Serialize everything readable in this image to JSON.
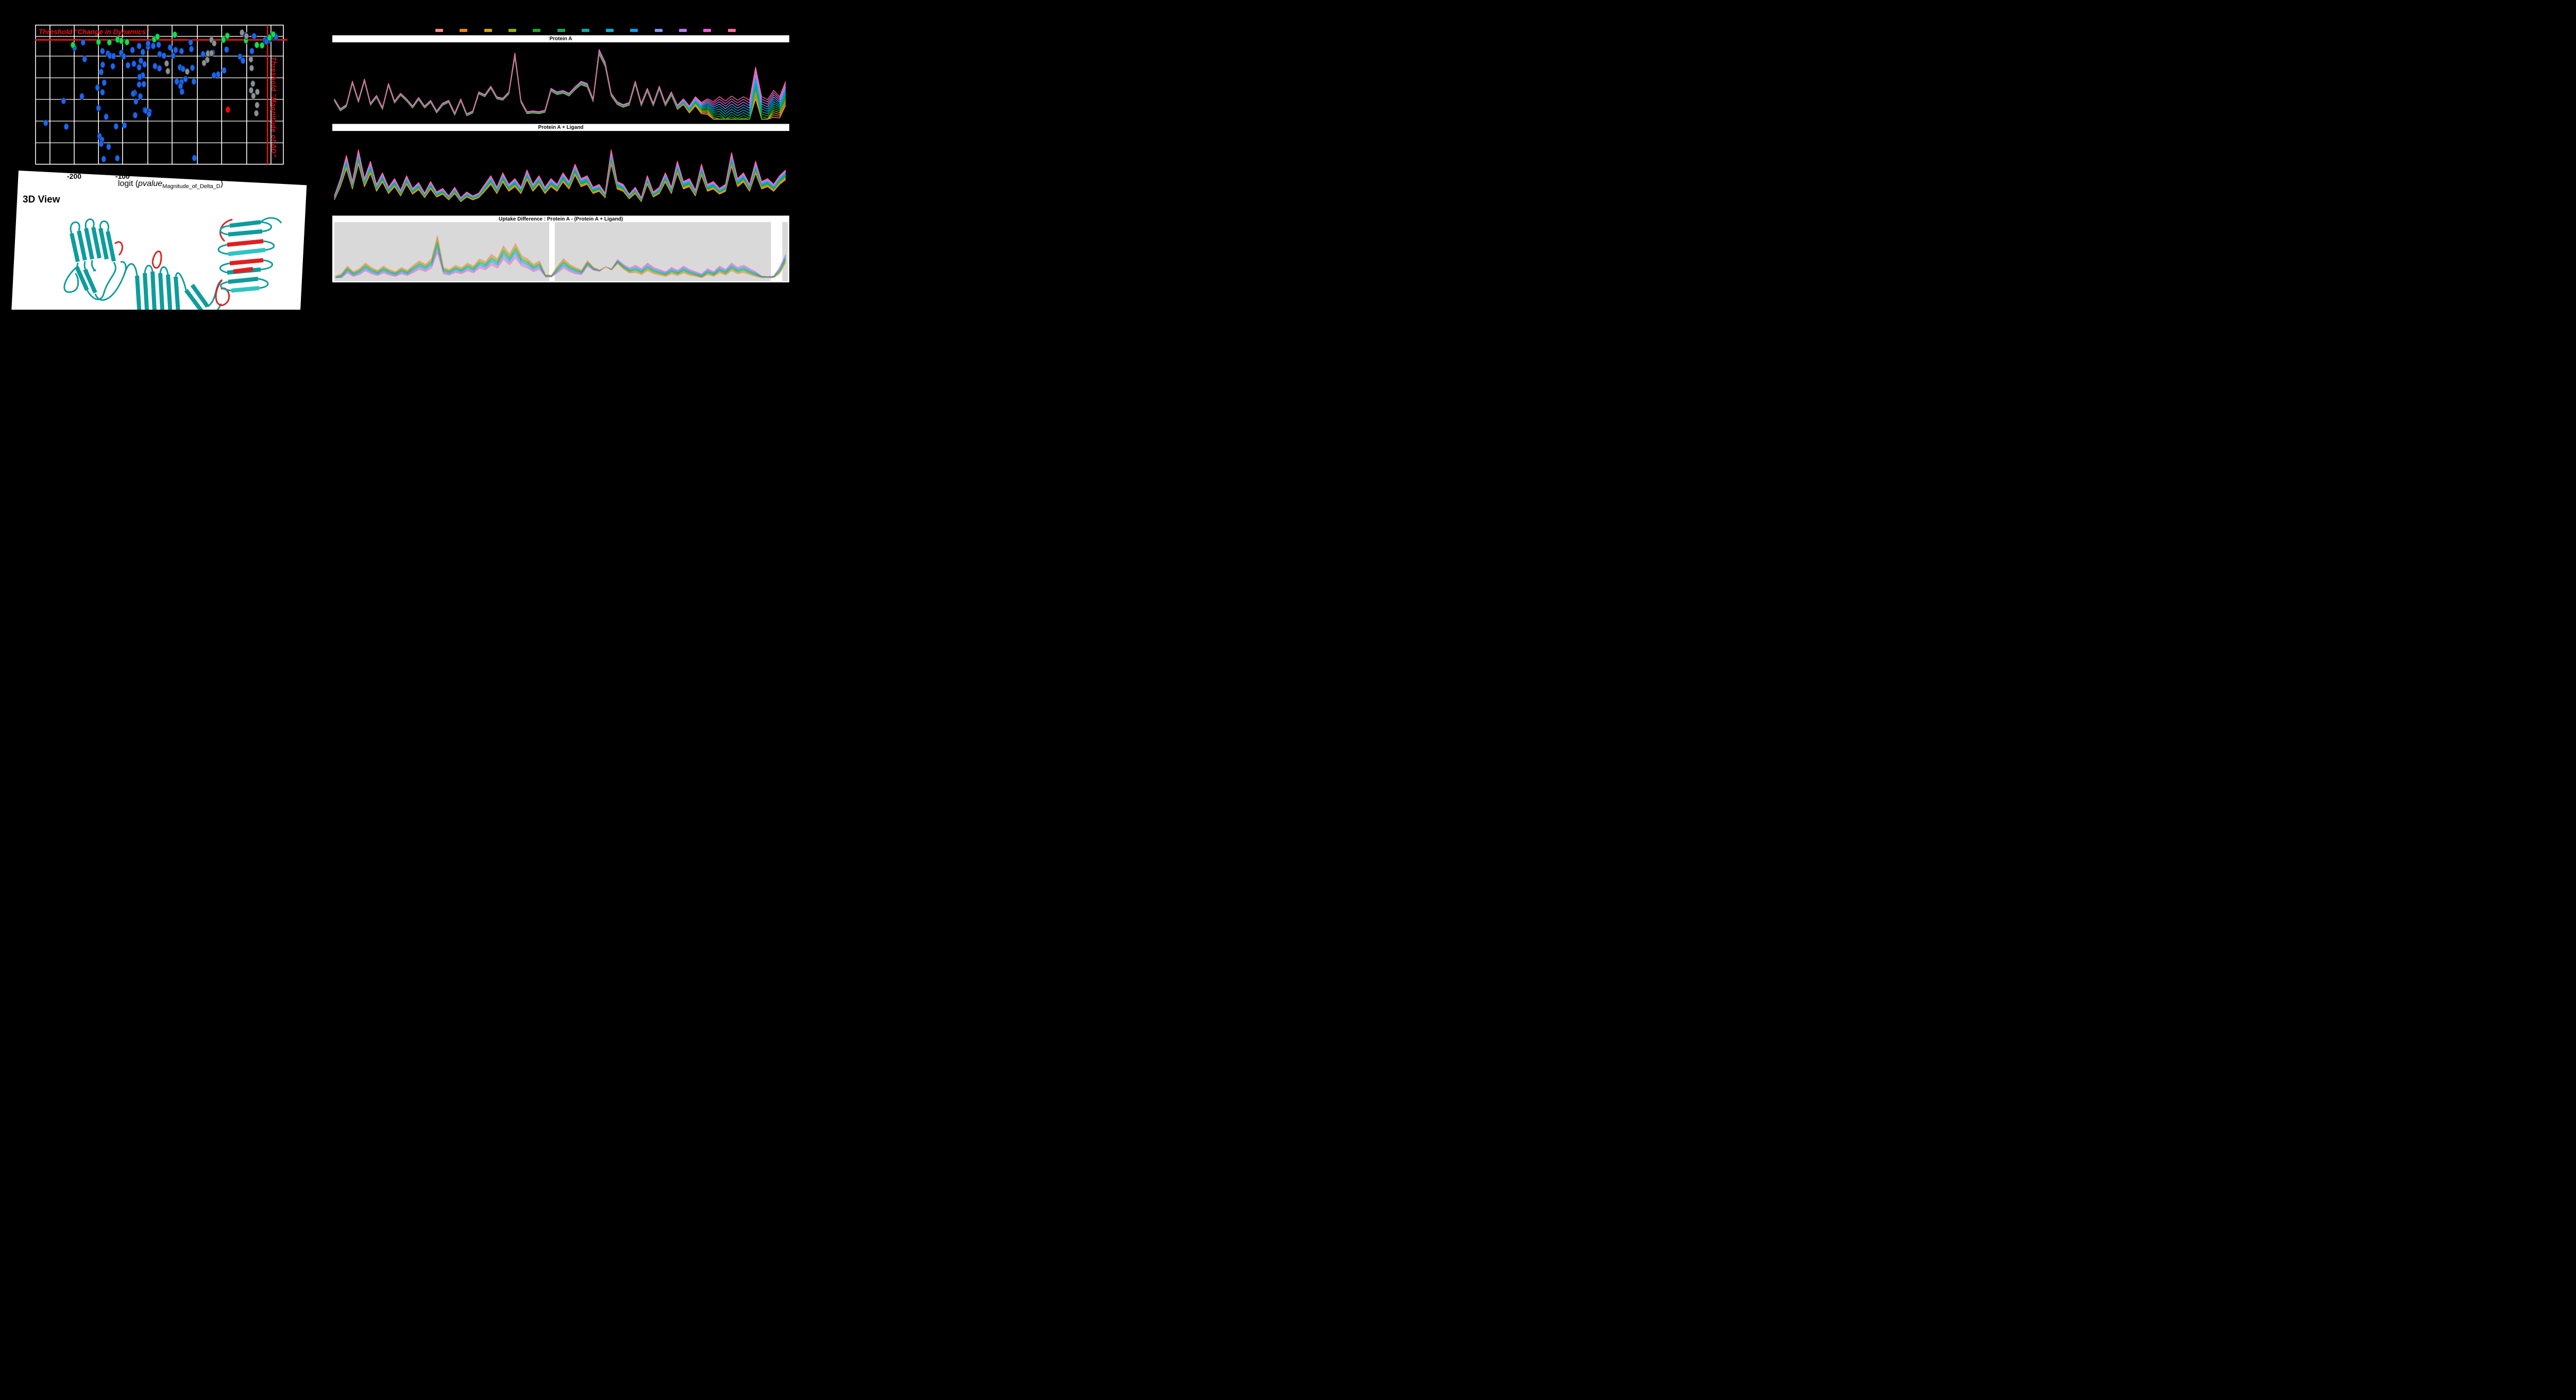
{
  "viewer3d": {
    "label": "3D View",
    "ribbon_color": "#0e9c9c",
    "highlight_color": "#e01f1f",
    "bg": "#ffffff"
  },
  "legend": {
    "colors": [
      "#f28b8b",
      "#e8860b",
      "#c7a410",
      "#8fb400",
      "#18a826",
      "#0cab62",
      "#00abab",
      "#00b4cc",
      "#00a0f0",
      "#8496ec",
      "#b878f0",
      "#ee5ad8",
      "#fb6c9c"
    ]
  },
  "volcano": {
    "threshold_label_horizontal": "Threshold \"Change in Dynamics\"",
    "threshold_label_vertical": "Threshold \"Magnitude of ΔD\"",
    "threshold_color": "#ee1111",
    "axis": {
      "title_pre": "logit (",
      "title_italic": "pvalue",
      "title_sub": "Magnitude_of_Delta_D",
      "title_post": ")",
      "ticks": [
        {
          "label": "-200",
          "pct": 15.6
        },
        {
          "label": "-100",
          "pct": 35.1
        }
      ]
    }
  },
  "chart_data": [
    {
      "id": "volcano",
      "type": "scatter",
      "title": "",
      "units": "percent_of_plot_area",
      "gridlines": {
        "v_pct": [
          5.8,
          15.6,
          25.4,
          35.1,
          45.3,
          55.1,
          65.3,
          75.1,
          85.2,
          95.0
        ],
        "h_pct": [
          8.1,
          22.3,
          37.9,
          53.4,
          69.0,
          84.6
        ]
      },
      "thresholds": {
        "h_pct": 10.6,
        "v_pct": 93.6,
        "color": "#ee1111"
      },
      "x_ticks": [
        {
          "label": "-200",
          "pct": 15.6
        },
        {
          "label": "-100",
          "pct": 35.1
        }
      ],
      "series": [
        {
          "name": "blue",
          "color": "#1b66f0",
          "stroke": "#0a1f4d",
          "points": [
            [
              15.7,
              16.3
            ],
            [
              19.2,
              12.4
            ],
            [
              19.8,
              24.5
            ],
            [
              27.0,
              18.7
            ],
            [
              29.2,
              20.5
            ],
            [
              30.0,
              22.0
            ],
            [
              31.5,
              22.3
            ],
            [
              34.6,
              20.0
            ],
            [
              35.6,
              22.5
            ],
            [
              27.1,
              28.5
            ],
            [
              31.2,
              29.6
            ],
            [
              26.5,
              33.7
            ],
            [
              27.7,
              41.4
            ],
            [
              25.0,
              45.0
            ],
            [
              27.0,
              48.3
            ],
            [
              18.7,
              51.2
            ],
            [
              11.3,
              54.5
            ],
            [
              25.4,
              59.7
            ],
            [
              28.5,
              65.9
            ],
            [
              32.5,
              72.8
            ],
            [
              35.9,
              72.1
            ],
            [
              25.8,
              79.8
            ],
            [
              26.8,
              82.4
            ],
            [
              26.5,
              85.3
            ],
            [
              29.5,
              87.5
            ],
            [
              27.5,
              96.3
            ],
            [
              37.3,
              28.9
            ],
            [
              39.1,
              17.9
            ],
            [
              39.7,
              27.8
            ],
            [
              41.8,
              30.4
            ],
            [
              43.3,
              19.4
            ],
            [
              45.4,
              15.7
            ],
            [
              43.3,
              36.2
            ],
            [
              42.0,
              37.3
            ],
            [
              43.7,
              42.5
            ],
            [
              41.8,
              42.7
            ],
            [
              40.0,
              48.7
            ],
            [
              39.4,
              49.3
            ],
            [
              42.3,
              51.2
            ],
            [
              40.5,
              54.9
            ],
            [
              44.1,
              61.1
            ],
            [
              44.5,
              61.5
            ],
            [
              46.0,
              62.2
            ],
            [
              45.8,
              64.0
            ],
            [
              40.2,
              64.8
            ],
            [
              49.7,
              14.1
            ],
            [
              47.5,
              15.0
            ],
            [
              50.1,
              20.9
            ],
            [
              51.8,
              22.0
            ],
            [
              55.5,
              22.0
            ],
            [
              54.3,
              16.1
            ],
            [
              56.5,
              17.9
            ],
            [
              58.9,
              18.7
            ],
            [
              58.3,
              30.4
            ],
            [
              59.5,
              31.5
            ],
            [
              63.3,
              30.7
            ],
            [
              57.0,
              40.6
            ],
            [
              58.9,
              41.0
            ],
            [
              60.5,
              38.8
            ],
            [
              63.9,
              40.6
            ],
            [
              58.5,
              43.9
            ],
            [
              59.1,
              47.9
            ],
            [
              62.6,
              12.4
            ],
            [
              62.9,
              17.2
            ],
            [
              67.6,
              20.9
            ],
            [
              69.5,
              20.0
            ],
            [
              71.5,
              19.8
            ],
            [
              72.0,
              36.2
            ],
            [
              73.7,
              35.5
            ],
            [
              77.1,
              17.6
            ],
            [
              76.1,
              32.6
            ],
            [
              82.5,
              22.7
            ],
            [
              83.7,
              25.6
            ],
            [
              87.3,
              18.7
            ],
            [
              88.2,
              8.0
            ],
            [
              84.7,
              7.2
            ],
            [
              92.6,
              10.8
            ],
            [
              93.7,
              10.2
            ],
            [
              94.1,
              11.2
            ],
            [
              93.2,
              11.9
            ],
            [
              95.0,
              9.0
            ],
            [
              94.5,
              8.4
            ],
            [
              96.7,
              7.7
            ],
            [
              97.0,
              8.6
            ],
            [
              4.1,
              70.3
            ],
            [
              12.4,
              73.0
            ],
            [
              33.0,
              95.7
            ],
            [
              64.1,
              95.6
            ],
            [
              42.5,
              25.6
            ],
            [
              44.0,
              28.2
            ],
            [
              48.2,
              29.5
            ],
            [
              50.0,
              31.1
            ],
            [
              41.8,
              15.0
            ],
            [
              45.4,
              13.2
            ]
          ]
        },
        {
          "name": "green",
          "color": "#0ee04e",
          "stroke": "#064d1e",
          "points": [
            [
              15.1,
              14.3
            ],
            [
              25.4,
              12.1
            ],
            [
              29.8,
              12.4
            ],
            [
              33.1,
              10.4
            ],
            [
              34.6,
              11.3
            ],
            [
              36.9,
              12.2
            ],
            [
              47.9,
              10.2
            ],
            [
              49.2,
              8.4
            ],
            [
              56.2,
              6.9
            ],
            [
              75.8,
              10.6
            ],
            [
              77.4,
              7.7
            ],
            [
              84.9,
              11.0
            ],
            [
              89.3,
              14.3
            ],
            [
              91.4,
              14.6
            ],
            [
              95.9,
              6.7
            ],
            [
              94.4,
              9.1
            ]
          ]
        },
        {
          "name": "gray",
          "color": "#8f8f8f",
          "stroke": "#1a2430",
          "points": [
            [
              83.3,
              5.4
            ],
            [
              85.1,
              8.0
            ],
            [
              71.0,
              10.6
            ],
            [
              72.1,
              13.1
            ],
            [
              69.6,
              20.5
            ],
            [
              71.0,
              20.2
            ],
            [
              69.3,
              25.0
            ],
            [
              68.0,
              27.2
            ],
            [
              52.9,
              27.6
            ],
            [
              53.4,
              33.1
            ],
            [
              61.2,
              33.4
            ],
            [
              86.9,
              24.6
            ],
            [
              87.2,
              30.9
            ],
            [
              87.7,
              42.1
            ],
            [
              87.0,
              46.9
            ],
            [
              89.5,
              48.0
            ],
            [
              87.9,
              50.9
            ],
            [
              89.4,
              57.5
            ],
            [
              89.1,
              63.4
            ]
          ]
        },
        {
          "name": "red",
          "color": "#f00808",
          "stroke": "#5a0404",
          "points": [
            [
              77.6,
              60.8
            ]
          ]
        }
      ]
    },
    {
      "id": "protein-a",
      "type": "line",
      "title": "Protein A",
      "n_series": 13,
      "order_top": "pink",
      "profile": [
        0.3,
        0.16,
        0.22,
        0.55,
        0.28,
        0.58,
        0.24,
        0.35,
        0.18,
        0.52,
        0.27,
        0.38,
        0.3,
        0.2,
        0.32,
        0.2,
        0.28,
        0.13,
        0.24,
        0.28,
        0.1,
        0.3,
        0.09,
        0.13,
        0.4,
        0.36,
        0.48,
        0.33,
        0.31,
        0.4,
        0.95,
        0.28,
        0.12,
        0.13,
        0.12,
        0.14,
        0.45,
        0.4,
        0.42,
        0.38,
        0.47,
        0.55,
        0.52,
        0.3,
        1.0,
        0.82,
        0.38,
        0.26,
        0.22,
        0.25,
        0.55,
        0.24,
        0.45,
        0.24,
        0.48,
        0.24,
        0.4,
        0.21,
        0.3,
        0.2,
        0.33,
        0.25,
        0.3,
        0.26,
        0.33,
        0.27,
        0.34,
        0.28,
        0.33,
        0.28,
        0.75,
        0.33,
        0.29,
        0.42,
        0.33,
        0.55
      ],
      "spread": [
        0.03,
        0.03,
        0.03,
        0.03,
        0.03,
        0.03,
        0.03,
        0.03,
        0.03,
        0.03,
        0.03,
        0.03,
        0.03,
        0.03,
        0.03,
        0.03,
        0.03,
        0.03,
        0.03,
        0.03,
        0.03,
        0.03,
        0.03,
        0.03,
        0.03,
        0.03,
        0.03,
        0.03,
        0.03,
        0.03,
        0.06,
        0.03,
        0.03,
        0.03,
        0.03,
        0.03,
        0.04,
        0.04,
        0.04,
        0.04,
        0.04,
        0.05,
        0.05,
        0.04,
        0.07,
        0.06,
        0.04,
        0.04,
        0.04,
        0.04,
        0.04,
        0.04,
        0.04,
        0.04,
        0.04,
        0.04,
        0.05,
        0.06,
        0.08,
        0.1,
        0.13,
        0.16,
        0.22,
        0.3,
        0.42,
        0.44,
        0.45,
        0.44,
        0.45,
        0.44,
        0.45,
        0.42,
        0.4,
        0.38,
        0.3,
        0.34
      ]
    },
    {
      "id": "protein-a-ligand",
      "type": "line",
      "title": "Protein A + Ligand",
      "n_series": 13,
      "order_top": "pink",
      "profile": [
        0.15,
        0.45,
        0.85,
        0.4,
        0.95,
        0.45,
        0.75,
        0.35,
        0.55,
        0.3,
        0.45,
        0.25,
        0.5,
        0.28,
        0.38,
        0.2,
        0.4,
        0.22,
        0.28,
        0.15,
        0.3,
        0.12,
        0.22,
        0.15,
        0.2,
        0.35,
        0.5,
        0.3,
        0.55,
        0.35,
        0.45,
        0.3,
        0.6,
        0.35,
        0.5,
        0.3,
        0.45,
        0.35,
        0.55,
        0.4,
        0.7,
        0.45,
        0.5,
        0.3,
        0.35,
        0.2,
        0.95,
        0.4,
        0.35,
        0.18,
        0.3,
        0.12,
        0.5,
        0.22,
        0.3,
        0.55,
        0.3,
        0.75,
        0.4,
        0.45,
        0.25,
        0.7,
        0.35,
        0.4,
        0.28,
        0.35,
        0.9,
        0.45,
        0.55,
        0.35,
        0.75,
        0.4,
        0.45,
        0.35,
        0.5,
        0.6
      ],
      "spread": [
        0.07,
        0.14,
        0.23,
        0.13,
        0.25,
        0.14,
        0.21,
        0.12,
        0.16,
        0.11,
        0.14,
        0.1,
        0.15,
        0.1,
        0.12,
        0.08,
        0.13,
        0.09,
        0.1,
        0.07,
        0.11,
        0.07,
        0.09,
        0.07,
        0.08,
        0.12,
        0.15,
        0.11,
        0.16,
        0.12,
        0.14,
        0.11,
        0.17,
        0.12,
        0.15,
        0.11,
        0.14,
        0.12,
        0.16,
        0.13,
        0.19,
        0.14,
        0.15,
        0.11,
        0.12,
        0.08,
        0.25,
        0.13,
        0.12,
        0.08,
        0.11,
        0.07,
        0.15,
        0.09,
        0.11,
        0.16,
        0.11,
        0.21,
        0.13,
        0.14,
        0.1,
        0.19,
        0.12,
        0.13,
        0.1,
        0.12,
        0.24,
        0.14,
        0.16,
        0.12,
        0.21,
        0.13,
        0.14,
        0.12,
        0.15,
        0.17
      ]
    },
    {
      "id": "uptake-difference",
      "type": "line",
      "title": "Uptake Difference : Protein A - (Protein A + Ligand)",
      "n_series": 13,
      "order_top": "salmon_then_pink",
      "bg": "#d9d9d9",
      "line_opacity": 0.6,
      "white_bands_pct": [
        [
          47.4,
          48.6
        ],
        [
          96.3,
          98.8
        ]
      ],
      "profile": [
        0.05,
        0.1,
        0.28,
        0.15,
        0.22,
        0.35,
        0.25,
        0.18,
        0.28,
        0.2,
        0.15,
        0.25,
        0.18,
        0.3,
        0.4,
        0.32,
        0.45,
        0.98,
        0.25,
        0.2,
        0.3,
        0.24,
        0.35,
        0.28,
        0.45,
        0.38,
        0.55,
        0.45,
        0.75,
        0.55,
        0.8,
        0.52,
        0.45,
        0.32,
        0.4,
        0.08,
        0.07,
        0.28,
        0.45,
        0.32,
        0.25,
        0.2,
        0.45,
        0.3,
        0.25,
        0.35,
        0.28,
        0.5,
        0.35,
        0.25,
        0.3,
        0.22,
        0.35,
        0.25,
        0.2,
        0.15,
        0.25,
        0.18,
        0.28,
        0.2,
        0.15,
        0.1,
        0.22,
        0.15,
        0.28,
        0.2,
        0.35,
        0.25,
        0.3,
        0.22,
        0.15,
        0.05,
        0.04,
        0.05,
        0.25,
        0.55
      ],
      "spread": [
        0.08,
        0.1,
        0.16,
        0.11,
        0.14,
        0.18,
        0.15,
        0.12,
        0.16,
        0.13,
        0.11,
        0.15,
        0.12,
        0.17,
        0.2,
        0.17,
        0.22,
        0.4,
        0.15,
        0.13,
        0.17,
        0.14,
        0.18,
        0.16,
        0.22,
        0.19,
        0.25,
        0.22,
        0.32,
        0.25,
        0.34,
        0.24,
        0.22,
        0.17,
        0.2,
        0.05,
        0.04,
        0.16,
        0.22,
        0.17,
        0.15,
        0.13,
        0.22,
        0.17,
        0.15,
        0.18,
        0.16,
        0.24,
        0.18,
        0.15,
        0.17,
        0.14,
        0.18,
        0.15,
        0.13,
        0.11,
        0.15,
        0.12,
        0.16,
        0.13,
        0.11,
        0.1,
        0.14,
        0.11,
        0.16,
        0.13,
        0.18,
        0.15,
        0.17,
        0.14,
        0.11,
        0.04,
        0.03,
        0.04,
        0.15,
        0.2
      ]
    }
  ]
}
